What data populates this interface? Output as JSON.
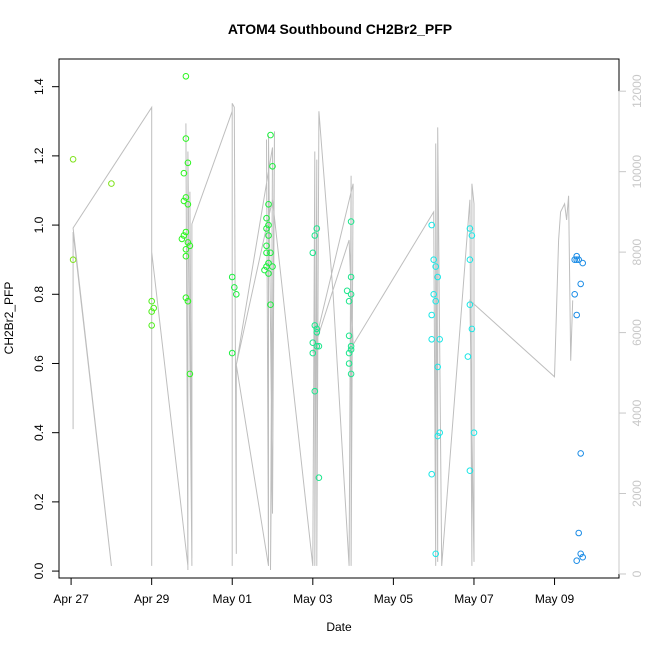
{
  "chart_data": {
    "type": "scatter",
    "title": "ATOM4 Southbound CH2Br2_PFP",
    "xlabel": "Date",
    "ylabel": "CH2Br2_PFP",
    "x_unit": "days in April–May",
    "xlim": [
      26.7,
      40.6
    ],
    "ylim": [
      -0.02,
      1.48
    ],
    "y2lim": [
      -100,
      12800
    ],
    "x_ticks": [
      {
        "value": 27,
        "label": "Apr 27"
      },
      {
        "value": 29,
        "label": "Apr 29"
      },
      {
        "value": 31,
        "label": "May 01"
      },
      {
        "value": 33,
        "label": "May 03"
      },
      {
        "value": 35,
        "label": "May 05"
      },
      {
        "value": 37,
        "label": "May 07"
      },
      {
        "value": 39,
        "label": "May 09"
      }
    ],
    "y_ticks": [
      0.0,
      0.2,
      0.4,
      0.6,
      0.8,
      1.0,
      1.2,
      1.4
    ],
    "y_tick_labels": [
      "0.0",
      "0.2",
      "0.4",
      "0.6",
      "0.8",
      "1.0",
      "1.2",
      "1.4"
    ],
    "y2_ticks": [
      0,
      2000,
      4000,
      6000,
      8000,
      10000,
      12000
    ],
    "y2_tick_labels": [
      "0",
      "2000",
      "4000",
      "6000",
      "8000",
      "10000",
      "12000"
    ],
    "grid": false,
    "altitude_line": {
      "color": "#bebebe",
      "x": [
        27.05,
        27.05,
        28.0,
        27.05,
        29.0,
        29.0,
        29.0,
        29.9,
        29.85,
        29.9,
        29.85,
        29.9,
        29.9,
        30.0,
        29.95,
        30.0,
        30.0,
        31.0,
        31.0,
        31.0,
        31.05,
        31.1,
        31.1,
        31.9,
        31.85,
        31.9,
        31.9,
        32.0,
        32.05,
        31.95,
        32.0,
        31.1,
        32.0,
        33.0,
        33.05,
        33.05,
        33.1,
        33.1,
        33.15,
        33.5,
        33.9,
        33.95,
        33.95,
        34.0,
        33.0,
        33.9,
        34.0,
        36.0,
        36.05,
        36.05,
        36.1,
        36.1,
        36.2,
        36.9,
        36.95,
        36.95,
        37.0,
        37.0,
        36.9,
        39.0,
        39.1,
        39.15,
        39.25,
        39.3,
        39.35,
        39.4,
        39.45
      ],
      "y": [
        3600,
        8500,
        200,
        8600,
        11600,
        200,
        8000,
        200,
        11200,
        100,
        11000,
        300,
        10500,
        200,
        9500,
        400,
        8700,
        11500,
        200,
        11700,
        11600,
        500,
        5200,
        200,
        10800,
        200,
        10900,
        1500,
        11000,
        100,
        10600,
        5200,
        9300,
        200,
        10500,
        200,
        10300,
        200,
        11500,
        7000,
        200,
        9900,
        200,
        9700,
        5500,
        8300,
        5700,
        9000,
        200,
        10700,
        300,
        11100,
        200,
        9300,
        200,
        9700,
        9200,
        300,
        6800,
        4900,
        8300,
        9000,
        9200,
        8800,
        9400,
        5300,
        6800
      ]
    },
    "series": [
      {
        "color": "#7fe31b",
        "points": [
          [
            27.05,
            1.19
          ],
          [
            27.05,
            0.9
          ],
          [
            28.0,
            1.12
          ]
        ]
      },
      {
        "color": "#4ff01a",
        "points": [
          [
            29.0,
            0.78
          ],
          [
            29.0,
            0.75
          ],
          [
            29.0,
            0.71
          ],
          [
            29.05,
            0.76
          ]
        ]
      },
      {
        "color": "#2af51e",
        "points": [
          [
            29.85,
            1.43
          ],
          [
            29.8,
            1.15
          ],
          [
            29.85,
            1.25
          ],
          [
            29.9,
            1.18
          ],
          [
            29.8,
            1.07
          ],
          [
            29.85,
            1.08
          ],
          [
            29.9,
            1.06
          ],
          [
            29.75,
            0.96
          ],
          [
            29.8,
            0.97
          ],
          [
            29.85,
            0.98
          ],
          [
            29.9,
            0.95
          ],
          [
            29.95,
            0.94
          ],
          [
            29.85,
            0.93
          ],
          [
            29.85,
            0.91
          ],
          [
            29.85,
            0.79
          ],
          [
            29.9,
            0.78
          ],
          [
            29.95,
            0.57
          ]
        ]
      },
      {
        "color": "#1bf03e",
        "points": [
          [
            31.0,
            0.85
          ],
          [
            31.05,
            0.82
          ],
          [
            31.1,
            0.8
          ],
          [
            31.0,
            0.63
          ],
          [
            31.85,
            1.02
          ],
          [
            31.9,
            1.0
          ],
          [
            31.95,
            1.26
          ],
          [
            32.0,
            1.17
          ],
          [
            31.9,
            1.06
          ],
          [
            31.85,
            0.99
          ],
          [
            31.9,
            0.97
          ],
          [
            31.85,
            0.94
          ],
          [
            31.85,
            0.92
          ],
          [
            31.95,
            0.92
          ],
          [
            31.9,
            0.89
          ],
          [
            31.85,
            0.88
          ],
          [
            31.8,
            0.87
          ],
          [
            31.9,
            0.86
          ],
          [
            32.0,
            0.88
          ],
          [
            31.95,
            0.77
          ]
        ]
      },
      {
        "color": "#1be68c",
        "points": [
          [
            33.0,
            0.92
          ],
          [
            33.05,
            0.97
          ],
          [
            33.1,
            0.99
          ],
          [
            33.05,
            0.71
          ],
          [
            33.1,
            0.7
          ],
          [
            33.1,
            0.69
          ],
          [
            33.0,
            0.66
          ],
          [
            33.1,
            0.65
          ],
          [
            33.15,
            0.65
          ],
          [
            33.0,
            0.63
          ],
          [
            33.05,
            0.52
          ],
          [
            33.15,
            0.27
          ],
          [
            33.95,
            1.01
          ],
          [
            33.95,
            0.85
          ],
          [
            33.85,
            0.81
          ],
          [
            33.95,
            0.8
          ],
          [
            33.9,
            0.78
          ],
          [
            33.9,
            0.68
          ],
          [
            33.95,
            0.65
          ],
          [
            33.9,
            0.63
          ],
          [
            33.95,
            0.64
          ],
          [
            33.9,
            0.6
          ],
          [
            33.95,
            0.57
          ]
        ]
      },
      {
        "color": "#1be6e6",
        "points": [
          [
            35.95,
            1.0
          ],
          [
            36.0,
            0.9
          ],
          [
            36.05,
            0.88
          ],
          [
            36.1,
            0.85
          ],
          [
            36.0,
            0.8
          ],
          [
            36.05,
            0.78
          ],
          [
            35.95,
            0.74
          ],
          [
            35.95,
            0.67
          ],
          [
            36.15,
            0.67
          ],
          [
            36.1,
            0.59
          ],
          [
            36.1,
            0.39
          ],
          [
            36.15,
            0.4
          ],
          [
            35.95,
            0.28
          ],
          [
            36.05,
            0.05
          ],
          [
            36.9,
            0.99
          ],
          [
            36.95,
            0.97
          ],
          [
            36.9,
            0.9
          ],
          [
            36.9,
            0.77
          ],
          [
            36.95,
            0.7
          ],
          [
            36.85,
            0.62
          ],
          [
            37.0,
            0.4
          ],
          [
            36.9,
            0.29
          ]
        ]
      },
      {
        "color": "#1b8ce6",
        "points": [
          [
            39.55,
            0.91
          ],
          [
            39.6,
            0.9
          ],
          [
            39.5,
            0.9
          ],
          [
            39.55,
            0.9
          ],
          [
            39.7,
            0.89
          ],
          [
            39.65,
            0.83
          ],
          [
            39.5,
            0.8
          ],
          [
            39.55,
            0.74
          ],
          [
            39.65,
            0.34
          ],
          [
            39.6,
            0.11
          ],
          [
            39.65,
            0.05
          ],
          [
            39.7,
            0.04
          ],
          [
            39.55,
            0.03
          ]
        ]
      }
    ]
  }
}
